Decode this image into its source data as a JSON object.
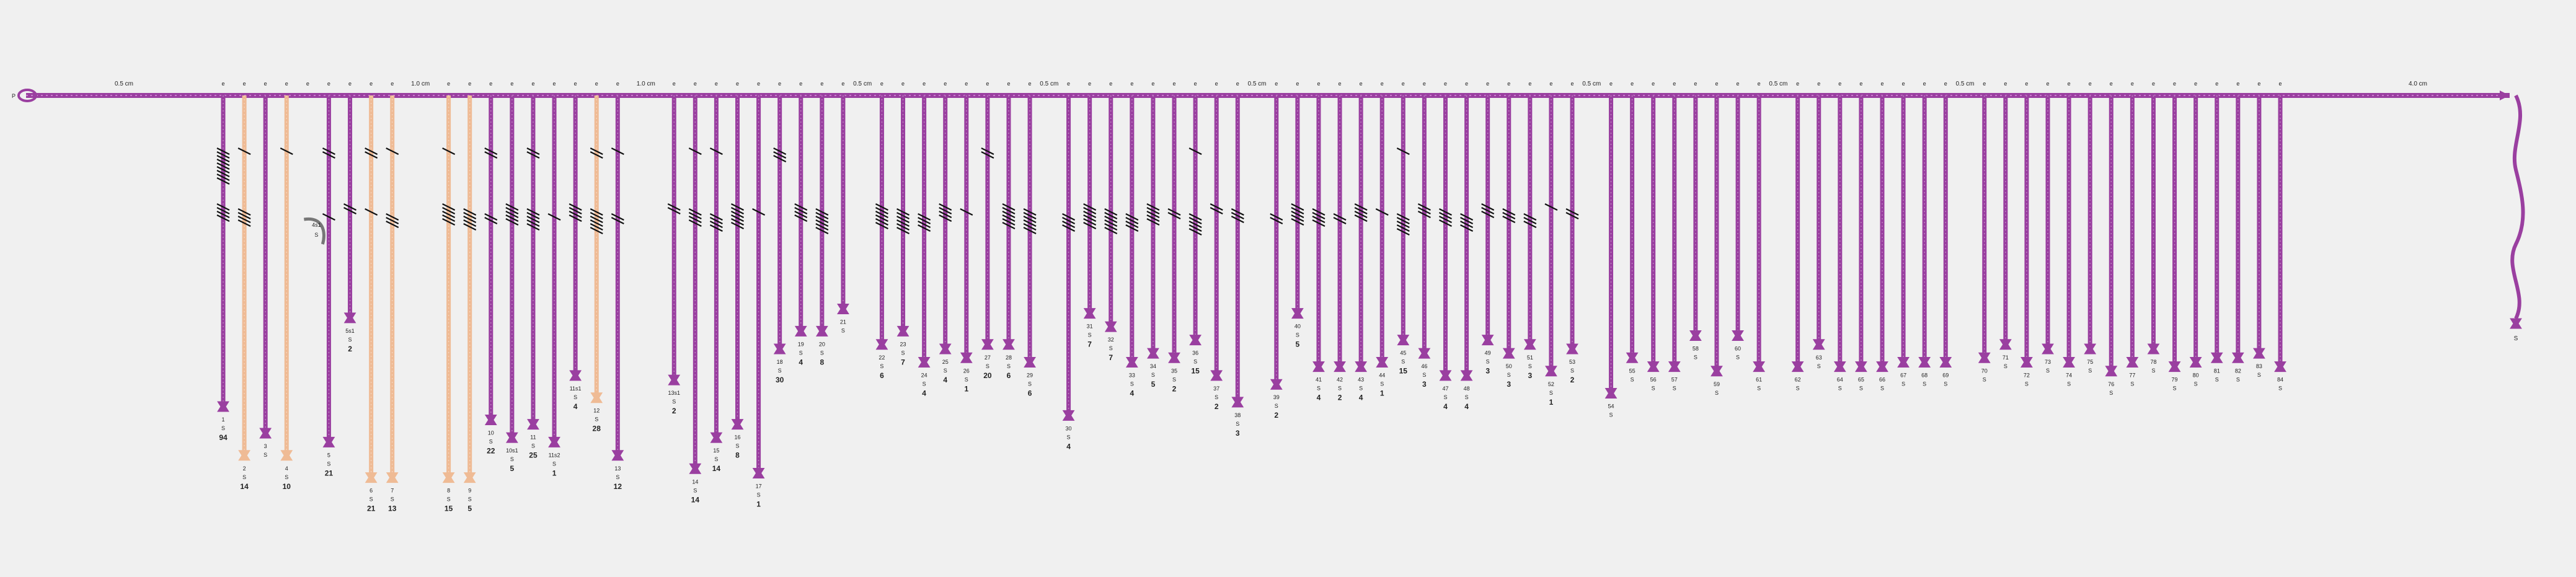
{
  "colors": {
    "background": "#f0f0f0",
    "primary_cord": "#9a3fa0",
    "primary_cord_light": "#c77bcc",
    "pendant_dark": "#9a3fa0",
    "pendant_light": "#efbb95",
    "knot": "#111111",
    "curl": "#777777",
    "label": "#222222"
  },
  "primary": {
    "start_label": "P",
    "spacings": [
      {
        "text": "0.5 cm",
        "after": 0
      },
      {
        "text": "1.0 cm",
        "after": 8
      },
      {
        "text": "1.0 cm",
        "after": 17
      },
      {
        "text": "0.5 cm",
        "after": 26
      },
      {
        "text": "0.5 cm",
        "after": 34
      },
      {
        "text": "0.5 cm",
        "after": 43
      },
      {
        "text": "0.5 cm",
        "after": 58
      },
      {
        "text": "0.5 cm",
        "after": 66
      },
      {
        "text": "0.5 cm",
        "after": 74
      },
      {
        "text": "4.0 cm",
        "after": 85
      }
    ],
    "end_pendant": {
      "num": "",
      "sub": "S"
    }
  },
  "pendants": [
    {
      "num": "1",
      "sub": "S",
      "value": "94",
      "color": "dark",
      "end": 0.69
    },
    {
      "num": "2",
      "sub": "S",
      "value": "14",
      "color": "light",
      "end": 0.8
    },
    {
      "num": "3",
      "sub": "S",
      "value": "",
      "color": "dark",
      "end": 0.75
    },
    {
      "num": "4",
      "sub": "S",
      "value": "10",
      "color": "light",
      "end": 0.8
    },
    {
      "num": "",
      "sub": "",
      "value": "",
      "color": "curl",
      "label2": "4s1",
      "sub2": "S"
    },
    {
      "num": "5",
      "sub": "S",
      "value": "21",
      "color": "dark",
      "end": 0.77
    },
    {
      "num": "5s1",
      "sub": "S",
      "value": "2",
      "color": "dark",
      "end": 0.49
    },
    {
      "num": "6",
      "sub": "S",
      "value": "21",
      "color": "light",
      "end": 0.85
    },
    {
      "num": "7",
      "sub": "S",
      "value": "13",
      "color": "light",
      "end": 0.85
    },
    {
      "num": "8",
      "sub": "S",
      "value": "15",
      "color": "light",
      "end": 0.85
    },
    {
      "num": "9",
      "sub": "S",
      "value": "5",
      "color": "light",
      "end": 0.85
    },
    {
      "num": "10",
      "sub": "S",
      "value": "22",
      "color": "dark",
      "end": 0.72
    },
    {
      "num": "10s1",
      "sub": "S",
      "value": "5",
      "color": "dark",
      "end": 0.76
    },
    {
      "num": "11",
      "sub": "S",
      "value": "25",
      "color": "dark",
      "end": 0.73
    },
    {
      "num": "11s2",
      "sub": "S",
      "value": "1",
      "color": "dark",
      "end": 0.77
    },
    {
      "num": "11s1",
      "sub": "S",
      "value": "4",
      "color": "dark",
      "end": 0.62
    },
    {
      "num": "12",
      "sub": "S",
      "value": "28",
      "color": "light",
      "end": 0.67
    },
    {
      "num": "13",
      "sub": "S",
      "value": "12",
      "color": "dark",
      "end": 0.8
    },
    {
      "num": "13s1",
      "sub": "S",
      "value": "2",
      "color": "dark",
      "end": 0.63
    },
    {
      "num": "14",
      "sub": "S",
      "value": "14",
      "color": "dark",
      "end": 0.83
    },
    {
      "num": "15",
      "sub": "S",
      "value": "14",
      "color": "dark",
      "end": 0.76
    },
    {
      "num": "16",
      "sub": "S",
      "value": "8",
      "color": "dark",
      "end": 0.73
    },
    {
      "num": "17",
      "sub": "S",
      "value": "1",
      "color": "dark",
      "end": 0.84
    },
    {
      "num": "18",
      "sub": "S",
      "value": "30",
      "color": "dark",
      "end": 0.56
    },
    {
      "num": "19",
      "sub": "S",
      "value": "4",
      "color": "dark",
      "end": 0.52
    },
    {
      "num": "20",
      "sub": "S",
      "value": "8",
      "color": "dark",
      "end": 0.52
    },
    {
      "num": "21",
      "sub": "S",
      "value": "",
      "color": "dark",
      "end": 0.47
    },
    {
      "num": "22",
      "sub": "S",
      "value": "6",
      "color": "dark",
      "end": 0.55
    },
    {
      "num": "23",
      "sub": "S",
      "value": "7",
      "color": "dark",
      "end": 0.52
    },
    {
      "num": "24",
      "sub": "S",
      "value": "4",
      "color": "dark",
      "end": 0.59
    },
    {
      "num": "25",
      "sub": "S",
      "value": "4",
      "color": "dark",
      "end": 0.56
    },
    {
      "num": "26",
      "sub": "S",
      "value": "1",
      "color": "dark",
      "end": 0.58
    },
    {
      "num": "27",
      "sub": "S",
      "value": "20",
      "color": "dark",
      "end": 0.55
    },
    {
      "num": "28",
      "sub": "S",
      "value": "6",
      "color": "dark",
      "end": 0.55
    },
    {
      "num": "29",
      "sub": "S",
      "value": "6",
      "color": "dark",
      "end": 0.59
    },
    {
      "num": "30",
      "sub": "S",
      "value": "4",
      "color": "dark",
      "end": 0.71
    },
    {
      "num": "31",
      "sub": "S",
      "value": "7",
      "color": "dark",
      "end": 0.48
    },
    {
      "num": "32",
      "sub": "S",
      "value": "7",
      "color": "dark",
      "end": 0.51
    },
    {
      "num": "33",
      "sub": "S",
      "value": "4",
      "color": "dark",
      "end": 0.59
    },
    {
      "num": "34",
      "sub": "S",
      "value": "5",
      "color": "dark",
      "end": 0.57
    },
    {
      "num": "35",
      "sub": "S",
      "value": "2",
      "color": "dark",
      "end": 0.58
    },
    {
      "num": "36",
      "sub": "S",
      "value": "15",
      "color": "dark",
      "end": 0.54
    },
    {
      "num": "37",
      "sub": "S",
      "value": "2",
      "color": "dark",
      "end": 0.62
    },
    {
      "num": "38",
      "sub": "S",
      "value": "3",
      "color": "dark",
      "end": 0.68
    },
    {
      "num": "39",
      "sub": "S",
      "value": "2",
      "color": "dark",
      "end": 0.64
    },
    {
      "num": "40",
      "sub": "S",
      "value": "5",
      "color": "dark",
      "end": 0.48
    },
    {
      "num": "41",
      "sub": "S",
      "value": "4",
      "color": "dark",
      "end": 0.6
    },
    {
      "num": "42",
      "sub": "S",
      "value": "2",
      "color": "dark",
      "end": 0.6
    },
    {
      "num": "43",
      "sub": "S",
      "value": "4",
      "color": "dark",
      "end": 0.6
    },
    {
      "num": "44",
      "sub": "S",
      "value": "1",
      "color": "dark",
      "end": 0.59
    },
    {
      "num": "45",
      "sub": "S",
      "value": "15",
      "color": "dark",
      "end": 0.54
    },
    {
      "num": "46",
      "sub": "S",
      "value": "3",
      "color": "dark",
      "end": 0.57
    },
    {
      "num": "47",
      "sub": "S",
      "value": "4",
      "color": "dark",
      "end": 0.62
    },
    {
      "num": "48",
      "sub": "S",
      "value": "4",
      "color": "dark",
      "end": 0.62
    },
    {
      "num": "49",
      "sub": "S",
      "value": "3",
      "color": "dark",
      "end": 0.54
    },
    {
      "num": "50",
      "sub": "S",
      "value": "3",
      "color": "dark",
      "end": 0.57
    },
    {
      "num": "51",
      "sub": "S",
      "value": "3",
      "color": "dark",
      "end": 0.55
    },
    {
      "num": "52",
      "sub": "S",
      "value": "1",
      "color": "dark",
      "end": 0.61
    },
    {
      "num": "53",
      "sub": "S",
      "value": "2",
      "color": "dark",
      "end": 0.56
    },
    {
      "num": "54",
      "sub": "S",
      "value": "",
      "color": "dark",
      "end": 0.66
    },
    {
      "num": "55",
      "sub": "S",
      "value": "",
      "color": "dark",
      "end": 0.58
    },
    {
      "num": "56",
      "sub": "S",
      "value": "",
      "color": "dark",
      "end": 0.6
    },
    {
      "num": "57",
      "sub": "S",
      "value": "",
      "color": "dark",
      "end": 0.6
    },
    {
      "num": "58",
      "sub": "S",
      "value": "",
      "color": "dark",
      "end": 0.53
    },
    {
      "num": "59",
      "sub": "S",
      "value": "",
      "color": "dark",
      "end": 0.61
    },
    {
      "num": "60",
      "sub": "S",
      "value": "",
      "color": "dark",
      "end": 0.53
    },
    {
      "num": "61",
      "sub": "S",
      "value": "",
      "color": "dark",
      "end": 0.6
    },
    {
      "num": "62",
      "sub": "S",
      "value": "",
      "color": "dark",
      "end": 0.6
    },
    {
      "num": "63",
      "sub": "S",
      "value": "",
      "color": "dark",
      "end": 0.55
    },
    {
      "num": "64",
      "sub": "S",
      "value": "",
      "color": "dark",
      "end": 0.6
    },
    {
      "num": "65",
      "sub": "S",
      "value": "",
      "color": "dark",
      "end": 0.6
    },
    {
      "num": "66",
      "sub": "S",
      "value": "",
      "color": "dark",
      "end": 0.6
    },
    {
      "num": "67",
      "sub": "S",
      "value": "",
      "color": "dark",
      "end": 0.59
    },
    {
      "num": "68",
      "sub": "S",
      "value": "",
      "color": "dark",
      "end": 0.59
    },
    {
      "num": "69",
      "sub": "S",
      "value": "",
      "color": "dark",
      "end": 0.59
    },
    {
      "num": "70",
      "sub": "S",
      "value": "",
      "color": "dark",
      "end": 0.58
    },
    {
      "num": "71",
      "sub": "S",
      "value": "",
      "color": "dark",
      "end": 0.55
    },
    {
      "num": "72",
      "sub": "S",
      "value": "",
      "color": "dark",
      "end": 0.59
    },
    {
      "num": "73",
      "sub": "S",
      "value": "",
      "color": "dark",
      "end": 0.56
    },
    {
      "num": "74",
      "sub": "S",
      "value": "",
      "color": "dark",
      "end": 0.59
    },
    {
      "num": "75",
      "sub": "S",
      "value": "",
      "color": "dark",
      "end": 0.56
    },
    {
      "num": "76",
      "sub": "S",
      "value": "",
      "color": "dark",
      "end": 0.61
    },
    {
      "num": "77",
      "sub": "S",
      "value": "",
      "color": "dark",
      "end": 0.59
    },
    {
      "num": "78",
      "sub": "S",
      "value": "",
      "color": "dark",
      "end": 0.56
    },
    {
      "num": "79",
      "sub": "S",
      "value": "",
      "color": "dark",
      "end": 0.6
    },
    {
      "num": "80",
      "sub": "S",
      "value": "",
      "color": "dark",
      "end": 0.59
    },
    {
      "num": "81",
      "sub": "S",
      "value": "",
      "color": "dark",
      "end": 0.58
    },
    {
      "num": "82",
      "sub": "S",
      "value": "",
      "color": "dark",
      "end": 0.58
    },
    {
      "num": "83",
      "sub": "S",
      "value": "",
      "color": "dark",
      "end": 0.57
    },
    {
      "num": "84",
      "sub": "S",
      "value": "",
      "color": "dark",
      "end": 0.6
    }
  ]
}
